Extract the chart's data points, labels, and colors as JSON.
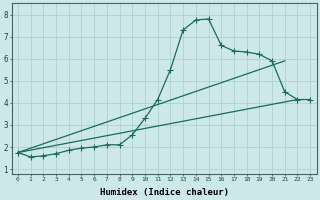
{
  "xlabel": "Humidex (Indice chaleur)",
  "ylabel": "",
  "background_color": "#cce8e8",
  "grid_color": "#aacccc",
  "line_color": "#1a6b5a",
  "xlim": [
    -0.5,
    23.5
  ],
  "ylim": [
    0.8,
    8.5
  ],
  "xticks": [
    0,
    1,
    2,
    3,
    4,
    5,
    6,
    7,
    8,
    9,
    10,
    11,
    12,
    13,
    14,
    15,
    16,
    17,
    18,
    19,
    20,
    21,
    22,
    23
  ],
  "yticks": [
    1,
    2,
    3,
    4,
    5,
    6,
    7,
    8
  ],
  "curve1_x": [
    0,
    1,
    2,
    3,
    4,
    5,
    6,
    7,
    8,
    9,
    10,
    11,
    12,
    13,
    14,
    15,
    16,
    17,
    18,
    19,
    20,
    21,
    22,
    23
  ],
  "curve1_y": [
    1.75,
    1.55,
    1.6,
    1.7,
    1.85,
    1.95,
    2.0,
    2.1,
    2.1,
    2.55,
    3.3,
    4.15,
    5.5,
    7.3,
    7.75,
    7.8,
    6.6,
    6.35,
    6.3,
    6.2,
    5.9,
    4.5,
    4.15,
    4.15
  ],
  "line2_x": [
    0,
    22
  ],
  "line2_y": [
    1.75,
    4.15
  ],
  "line3_x": [
    0,
    21
  ],
  "line3_y": [
    1.75,
    5.9
  ],
  "marker": "+",
  "markersize": 4,
  "linewidth": 0.9
}
